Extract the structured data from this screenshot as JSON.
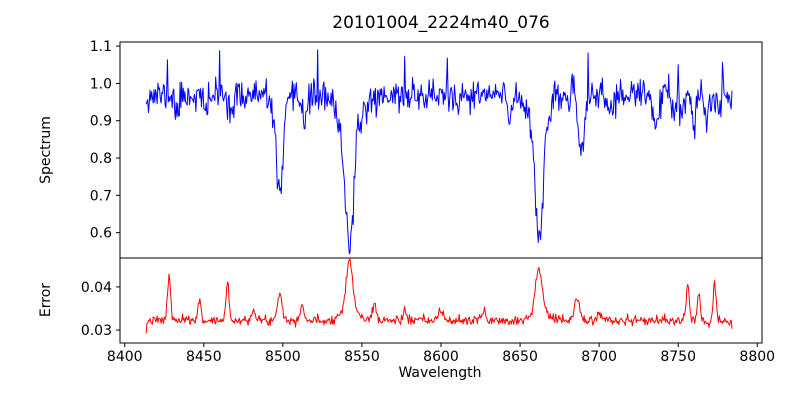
{
  "chart_data": {
    "type": "line",
    "title": "20101004_2224m40_076",
    "xlabel": "Wavelength",
    "background": "#ffffff",
    "frame_color": "#000000",
    "grid": false,
    "legend": "none",
    "xlim": [
      8397,
      8803
    ],
    "x_ticks": [
      8400,
      8450,
      8500,
      8550,
      8600,
      8650,
      8700,
      8750,
      8800
    ],
    "x_tick_labels": [
      "8400",
      "8450",
      "8500",
      "8550",
      "8600",
      "8650",
      "8700",
      "8750",
      "8800"
    ],
    "x_data_range": [
      8413.5,
      8784
    ],
    "sample_step": 0.5,
    "panels": [
      {
        "name": "spectrum",
        "ylabel": "Spectrum",
        "color": "#0000ff",
        "ylim": [
          0.532,
          1.111
        ],
        "y_ticks": [
          0.6,
          0.7,
          0.8,
          0.9,
          1.0,
          1.1
        ],
        "y_tick_labels": [
          "0.6",
          "0.7",
          "0.8",
          "0.9",
          "1.0",
          "1.1"
        ],
        "continuum": 0.968,
        "noise_sigma": 0.021,
        "seed": 11,
        "absorption_lines": [
          [
            8433,
            0.05,
            1.2
          ],
          [
            8451,
            0.05,
            1.2
          ],
          [
            8468,
            0.04,
            1.5
          ],
          [
            8498,
            0.23,
            1.8
          ],
          [
            8498,
            0.05,
            5
          ],
          [
            8514,
            0.06,
            1.5
          ],
          [
            8542.1,
            0.3,
            2.6
          ],
          [
            8542.1,
            0.1,
            7
          ],
          [
            8611,
            0.05,
            1.5
          ],
          [
            8643,
            0.06,
            1.3
          ],
          [
            8662.1,
            0.3,
            2.4
          ],
          [
            8662.1,
            0.08,
            6
          ],
          [
            8688.6,
            0.16,
            1.8
          ],
          [
            8707,
            0.05,
            1.5
          ],
          [
            8736,
            0.07,
            1.8
          ],
          [
            8747,
            0.05,
            1.2
          ],
          [
            8752,
            0.06,
            1.2
          ],
          [
            8760,
            0.1,
            1.3
          ],
          [
            8768,
            0.07,
            1.2
          ],
          [
            8776,
            0.05,
            1.0
          ]
        ],
        "line_minima": {
          "8498": 0.69,
          "8542": 0.565,
          "8662": 0.58,
          "8688": 0.79
        },
        "spikes": [
          [
            8427,
            1.063
          ],
          [
            8460,
            1.088
          ],
          [
            8522,
            1.09
          ],
          [
            8577,
            1.072
          ],
          [
            8604,
            1.068
          ],
          [
            8693,
            1.082
          ],
          [
            8750,
            1.05
          ],
          [
            8778,
            1.056
          ]
        ]
      },
      {
        "name": "error",
        "ylabel": "Error",
        "color": "#ff0000",
        "ylim": [
          0.027,
          0.0467
        ],
        "y_ticks": [
          0.03,
          0.04
        ],
        "y_tick_labels": [
          "0.03",
          "0.04"
        ],
        "continuum": 0.0322,
        "noise_sigma": 0.00055,
        "seed": 7,
        "peaks": [
          [
            8428,
            0.01,
            1.0
          ],
          [
            8447,
            0.0046,
            1.0
          ],
          [
            8465,
            0.0086,
            1.0
          ],
          [
            8481,
            0.0028,
            1.2
          ],
          [
            8498,
            0.0066,
            1.5
          ],
          [
            8512,
            0.0037,
            1.3
          ],
          [
            8542,
            0.0112,
            2.0
          ],
          [
            8542,
            0.0028,
            5
          ],
          [
            8558,
            0.0037,
            1.3
          ],
          [
            8577,
            0.0022,
            1.2
          ],
          [
            8600,
            0.0022,
            1.5
          ],
          [
            8627,
            0.0022,
            1.3
          ],
          [
            8662,
            0.0098,
            2.0
          ],
          [
            8662,
            0.0024,
            5
          ],
          [
            8686,
            0.0052,
            1.6
          ],
          [
            8700,
            0.0018,
            1.5
          ],
          [
            8756,
            0.0082,
            0.9
          ],
          [
            8763,
            0.0058,
            1.0
          ],
          [
            8773,
            0.0088,
            0.9
          ]
        ],
        "peak_maxima": {
          "8428": 0.0424,
          "8465": 0.041,
          "8498": 0.039,
          "8542": 0.0455,
          "8662": 0.044,
          "8773": 0.042
        },
        "sets": [
          [
            8413.5,
            0.0292
          ],
          [
            8414,
            0.0315
          ],
          [
            8784,
            0.0303
          ]
        ]
      }
    ]
  }
}
